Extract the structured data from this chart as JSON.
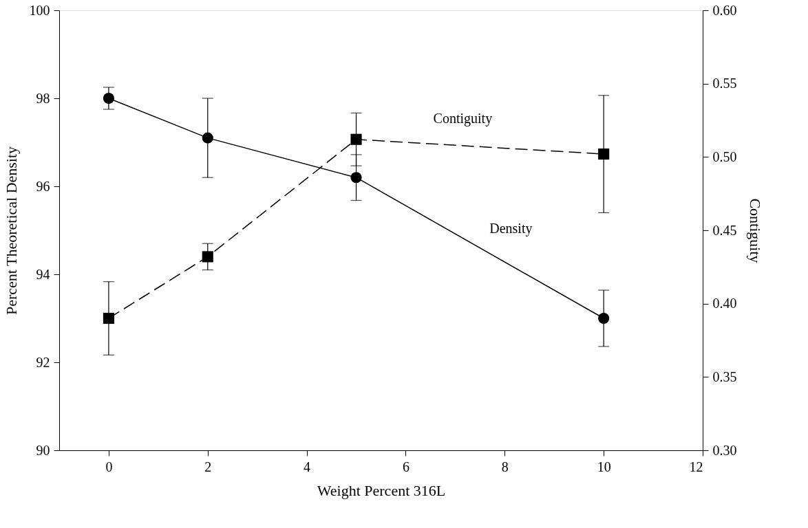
{
  "chart_data": {
    "type": "line",
    "xlabel": "Weight Percent 316L",
    "ylabel": "Percent Theoretical Density",
    "y2label": "Contiguity",
    "x": [
      0,
      2,
      5,
      10
    ],
    "series": [
      {
        "name": "Density",
        "color": "#000000",
        "marker": "circle",
        "line_style": "solid",
        "axis": "y",
        "values": [
          98.0,
          97.1,
          96.2,
          93.0
        ],
        "errors": [
          0.25,
          0.9,
          0.52,
          0.64
        ]
      },
      {
        "name": "Contiguity",
        "color": "#000000",
        "marker": "square",
        "line_style": "dashed",
        "axis": "y2",
        "values": [
          0.39,
          0.432,
          0.512,
          0.502
        ],
        "errors": [
          0.025,
          0.009,
          0.018,
          0.04
        ]
      }
    ],
    "xlim": [
      -1,
      12
    ],
    "xticks": [
      0,
      2,
      4,
      6,
      8,
      10,
      12
    ],
    "ylim": [
      90,
      100
    ],
    "yticks": [
      90,
      92,
      94,
      96,
      98,
      100
    ],
    "y2lim": [
      0.3,
      0.6
    ],
    "y2ticks": [
      {
        "value": 0.3,
        "label": "0.30"
      },
      {
        "value": 0.35,
        "label": "0.35"
      },
      {
        "value": 0.4,
        "label": "0.40"
      },
      {
        "value": 0.45,
        "label": "0.45"
      },
      {
        "value": 0.5,
        "label": "0.50"
      },
      {
        "value": 0.55,
        "label": "0.55"
      },
      {
        "value": 0.6,
        "label": "0.60"
      }
    ],
    "grid": false,
    "legend": false
  }
}
